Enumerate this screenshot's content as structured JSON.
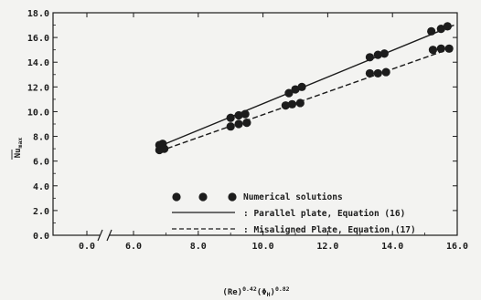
{
  "chart_data": {
    "type": "scatter",
    "title": "",
    "xlabel": "(Re)^0.42(Φ_H)^0.82",
    "ylabel": "Nu_max",
    "xlim": [
      6.0,
      16.0
    ],
    "ylim": [
      0.0,
      18.0
    ],
    "x_ticks": [
      "0.0",
      "6.0",
      "8.0",
      "10.0",
      "12.0",
      "14.0",
      "16.0"
    ],
    "y_ticks": [
      "0.0",
      "2.0",
      "4.0",
      "6.0",
      "8.0",
      "10.0",
      "12.0",
      "14.0",
      "16.0",
      "18.0"
    ],
    "axis_break": true,
    "grid": false,
    "legend_position": "bottom-right",
    "series": [
      {
        "name": "Numerical solutions",
        "style": "markers",
        "points": [
          {
            "x": 6.8,
            "y": 7.3
          },
          {
            "x": 6.9,
            "y": 7.4
          },
          {
            "x": 9.0,
            "y": 9.5
          },
          {
            "x": 9.25,
            "y": 9.7
          },
          {
            "x": 9.45,
            "y": 9.8
          },
          {
            "x": 10.8,
            "y": 11.5
          },
          {
            "x": 11.0,
            "y": 11.8
          },
          {
            "x": 11.2,
            "y": 12.0
          },
          {
            "x": 13.3,
            "y": 14.4
          },
          {
            "x": 13.55,
            "y": 14.6
          },
          {
            "x": 13.75,
            "y": 14.7
          },
          {
            "x": 15.2,
            "y": 16.5
          },
          {
            "x": 15.5,
            "y": 16.7
          },
          {
            "x": 15.7,
            "y": 16.9
          },
          {
            "x": 6.8,
            "y": 6.9
          },
          {
            "x": 6.95,
            "y": 7.0
          },
          {
            "x": 9.0,
            "y": 8.8
          },
          {
            "x": 9.25,
            "y": 9.0
          },
          {
            "x": 9.5,
            "y": 9.1
          },
          {
            "x": 10.7,
            "y": 10.5
          },
          {
            "x": 10.9,
            "y": 10.6
          },
          {
            "x": 11.15,
            "y": 10.7
          },
          {
            "x": 13.3,
            "y": 13.1
          },
          {
            "x": 13.55,
            "y": 13.1
          },
          {
            "x": 13.8,
            "y": 13.2
          },
          {
            "x": 15.25,
            "y": 15.0
          },
          {
            "x": 15.5,
            "y": 15.1
          },
          {
            "x": 15.75,
            "y": 15.1
          }
        ]
      },
      {
        "name": "Parallel plate, Equation (16)",
        "style": "solid",
        "points": [
          {
            "x": 6.8,
            "y": 7.2
          },
          {
            "x": 15.9,
            "y": 17.0
          }
        ]
      },
      {
        "name": "Misaligned Plate, Equation (17)",
        "style": "dashed",
        "points": [
          {
            "x": 6.8,
            "y": 6.8
          },
          {
            "x": 15.9,
            "y": 15.2
          }
        ]
      }
    ],
    "legend": {
      "numerical": "Numerical solutions",
      "parallel": ": Parallel plate, Equation (16)",
      "misaligned": ": Misaligned Plate, Equation (17)"
    },
    "colors": {
      "ink": "#1c1c1c",
      "background": "#f3f3f1"
    }
  }
}
